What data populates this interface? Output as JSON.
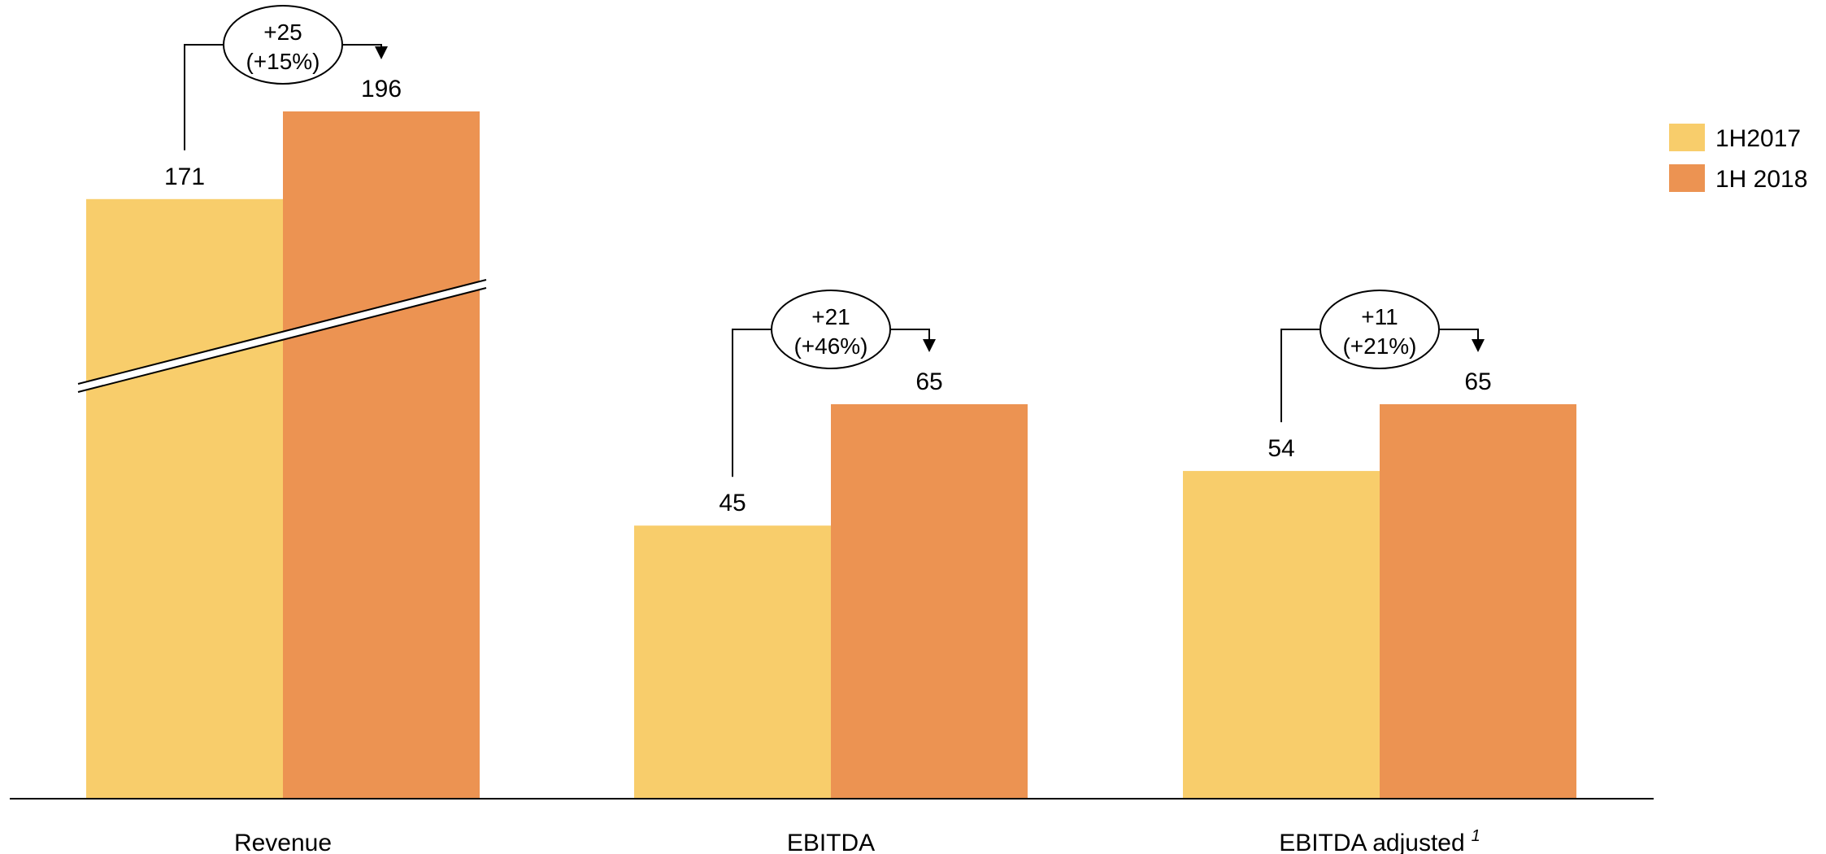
{
  "chart_data": {
    "type": "bar",
    "categories": [
      "Revenue",
      "EBITDA",
      "EBITDA adjusted"
    ],
    "category_footnotes": [
      "",
      "",
      "1"
    ],
    "series": [
      {
        "name": "1H2017",
        "values": [
          171,
          45,
          54
        ],
        "color": "#F8CD6B"
      },
      {
        "name": "1H 2018",
        "values": [
          196,
          65,
          65
        ],
        "color": "#EC9352"
      }
    ],
    "value_labels": [
      [
        "171",
        "45",
        "54"
      ],
      [
        "196",
        "65",
        "65"
      ]
    ],
    "changes": [
      {
        "abs": "+25",
        "pct": "(+15%)"
      },
      {
        "abs": "+21",
        "pct": "(+46%)"
      },
      {
        "abs": "+11",
        "pct": "(+21%)"
      }
    ],
    "broken_axis_categories": [
      "Revenue"
    ],
    "legend_position": "top-right",
    "grid": false,
    "title": "",
    "xlabel": "",
    "ylabel": ""
  }
}
